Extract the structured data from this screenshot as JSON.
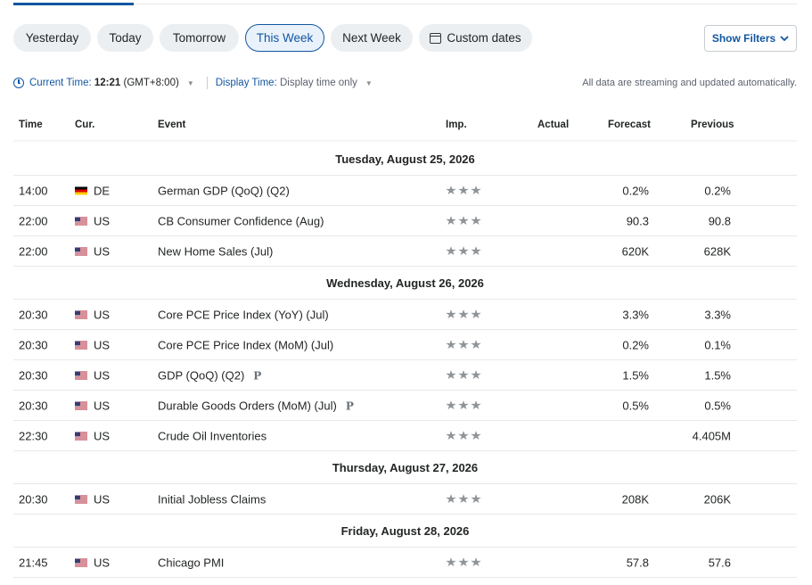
{
  "filters": {
    "ranges": [
      "Yesterday",
      "Today",
      "Tomorrow",
      "This Week",
      "Next Week",
      "Custom dates"
    ],
    "active": "This Week",
    "show_filters_label": "Show Filters"
  },
  "time_bar": {
    "current_time_label": "Current Time:",
    "current_time_value": "12:21",
    "timezone": "(GMT+8:00)",
    "display_time_label": "Display Time:",
    "display_time_value": "Display time only",
    "stream_note": "All data are streaming and updated automatically."
  },
  "table": {
    "headers": {
      "time": "Time",
      "currency": "Cur.",
      "event": "Event",
      "importance": "Imp.",
      "actual": "Actual",
      "forecast": "Forecast",
      "previous": "Previous"
    },
    "days": [
      {
        "label": "Tuesday, August 25, 2026",
        "events": [
          {
            "time": "14:00",
            "flag": "de",
            "currency": "DE",
            "event": "German GDP (QoQ) (Q2)",
            "importance_stars": 3,
            "actual": "",
            "forecast": "0.2%",
            "previous": "0.2%",
            "prelim": ""
          },
          {
            "time": "22:00",
            "flag": "us",
            "currency": "US",
            "event": "CB Consumer Confidence  (Aug)",
            "importance_stars": 3,
            "actual": "",
            "forecast": "90.3",
            "previous": "90.8",
            "prelim": ""
          },
          {
            "time": "22:00",
            "flag": "us",
            "currency": "US",
            "event": "New Home Sales  (Jul)",
            "importance_stars": 3,
            "actual": "",
            "forecast": "620K",
            "previous": "628K",
            "prelim": ""
          }
        ]
      },
      {
        "label": "Wednesday, August 26, 2026",
        "events": [
          {
            "time": "20:30",
            "flag": "us",
            "currency": "US",
            "event": "Core PCE Price Index (YoY) (Jul)",
            "importance_stars": 3,
            "actual": "",
            "forecast": "3.3%",
            "previous": "3.3%",
            "prelim": ""
          },
          {
            "time": "20:30",
            "flag": "us",
            "currency": "US",
            "event": "Core PCE Price Index (MoM) (Jul)",
            "importance_stars": 3,
            "actual": "",
            "forecast": "0.2%",
            "previous": "0.1%",
            "prelim": ""
          },
          {
            "time": "20:30",
            "flag": "us",
            "currency": "US",
            "event": "GDP (QoQ) (Q2)",
            "importance_stars": 3,
            "actual": "",
            "forecast": "1.5%",
            "previous": "1.5%",
            "prelim": "P"
          },
          {
            "time": "20:30",
            "flag": "us",
            "currency": "US",
            "event": "Durable Goods Orders (MoM) (Jul)",
            "importance_stars": 3,
            "actual": "",
            "forecast": "0.5%",
            "previous": "0.5%",
            "prelim": "P"
          },
          {
            "time": "22:30",
            "flag": "us",
            "currency": "US",
            "event": "Crude Oil Inventories",
            "importance_stars": 3,
            "actual": "",
            "forecast": "",
            "previous": "4.405M",
            "prelim": ""
          }
        ]
      },
      {
        "label": "Thursday, August 27, 2026",
        "events": [
          {
            "time": "20:30",
            "flag": "us",
            "currency": "US",
            "event": "Initial Jobless Claims",
            "importance_stars": 3,
            "actual": "",
            "forecast": "208K",
            "previous": "206K",
            "prelim": ""
          }
        ]
      },
      {
        "label": "Friday, August 28, 2026",
        "events": [
          {
            "time": "21:45",
            "flag": "us",
            "currency": "US",
            "event": "Chicago PMI",
            "importance_stars": 3,
            "actual": "",
            "forecast": "57.8",
            "previous": "57.6",
            "prelim": ""
          }
        ]
      }
    ]
  },
  "colors": {
    "accent": "#1256a0",
    "pill_bg": "#eceff1",
    "row_border": "#e6e9eb",
    "star": "#8e9499"
  }
}
